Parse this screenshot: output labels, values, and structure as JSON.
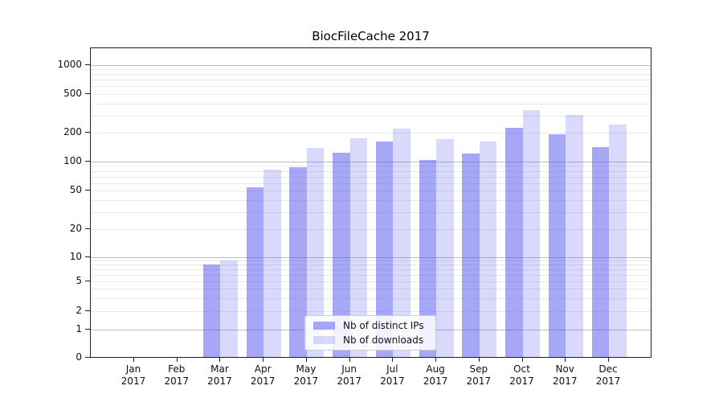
{
  "chart_data": {
    "type": "bar",
    "title": "BiocFileCache 2017",
    "categories": [
      "Jan 2017",
      "Feb 2017",
      "Mar 2017",
      "Apr 2017",
      "May 2017",
      "Jun 2017",
      "Jul 2017",
      "Aug 2017",
      "Sep 2017",
      "Oct 2017",
      "Nov 2017",
      "Dec 2017"
    ],
    "series": [
      {
        "name": "Nb of distinct IPs",
        "color": "rgba(80,80,240,0.5)",
        "values": [
          0,
          0,
          8,
          54,
          88,
          124,
          163,
          103,
          121,
          224,
          194,
          141
        ]
      },
      {
        "name": "Nb of downloads",
        "color": "rgba(80,80,240,0.22)",
        "values": [
          0,
          0,
          9,
          83,
          140,
          176,
          220,
          173,
          162,
          339,
          304,
          240
        ]
      }
    ],
    "xlabel": "",
    "ylabel": "",
    "yscale": "symlog",
    "ylim": [
      0,
      1480
    ],
    "y_ticks": [
      0,
      1,
      2,
      5,
      10,
      20,
      50,
      100,
      200,
      500,
      1000
    ],
    "grid": "on",
    "legend_position": "inside-lower-center",
    "colors": {
      "bar_base": "#5050f0",
      "grid_major": "#bdbdbd",
      "grid_minor": "#e9e9e9",
      "axis": "#1f1f1f"
    }
  }
}
